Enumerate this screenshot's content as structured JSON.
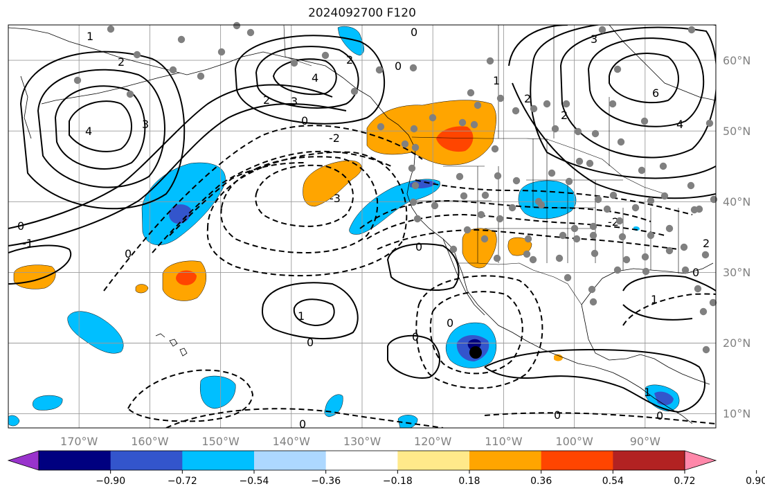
{
  "title": "2024092700 F120",
  "map": {
    "type": "contour-shaded map",
    "projection": "lat-lon",
    "lon_range": [
      -180,
      -80
    ],
    "lat_range": [
      8,
      65
    ],
    "lon_ticks": [
      "170°W",
      "160°W",
      "150°W",
      "140°W",
      "130°W",
      "120°W",
      "110°W",
      "100°W",
      "90°W"
    ],
    "lat_ticks": [
      "60°N",
      "50°N",
      "40°N",
      "30°N",
      "20°N",
      "10°N"
    ],
    "gridlines": true,
    "contour_labels": [
      "0",
      "1",
      "2",
      "3",
      "4",
      "6",
      "-1",
      "-2",
      "-3"
    ],
    "negative_contours": "dashed",
    "station_color": "#808080",
    "marker_color": "#000000"
  },
  "colorbar": {
    "colors": [
      "#9933cc",
      "#000080",
      "#3355cc",
      "#00bfff",
      "#add8ff",
      "#ffffff",
      "#ffe98a",
      "#ffa500",
      "#ff4500",
      "#b22222",
      "#ff88aa"
    ],
    "tick_labels": [
      "−0.90",
      "−0.72",
      "−0.54",
      "−0.36",
      "−0.18",
      "0.18",
      "0.36",
      "0.54",
      "0.72",
      "0.90"
    ],
    "extend": "both"
  }
}
